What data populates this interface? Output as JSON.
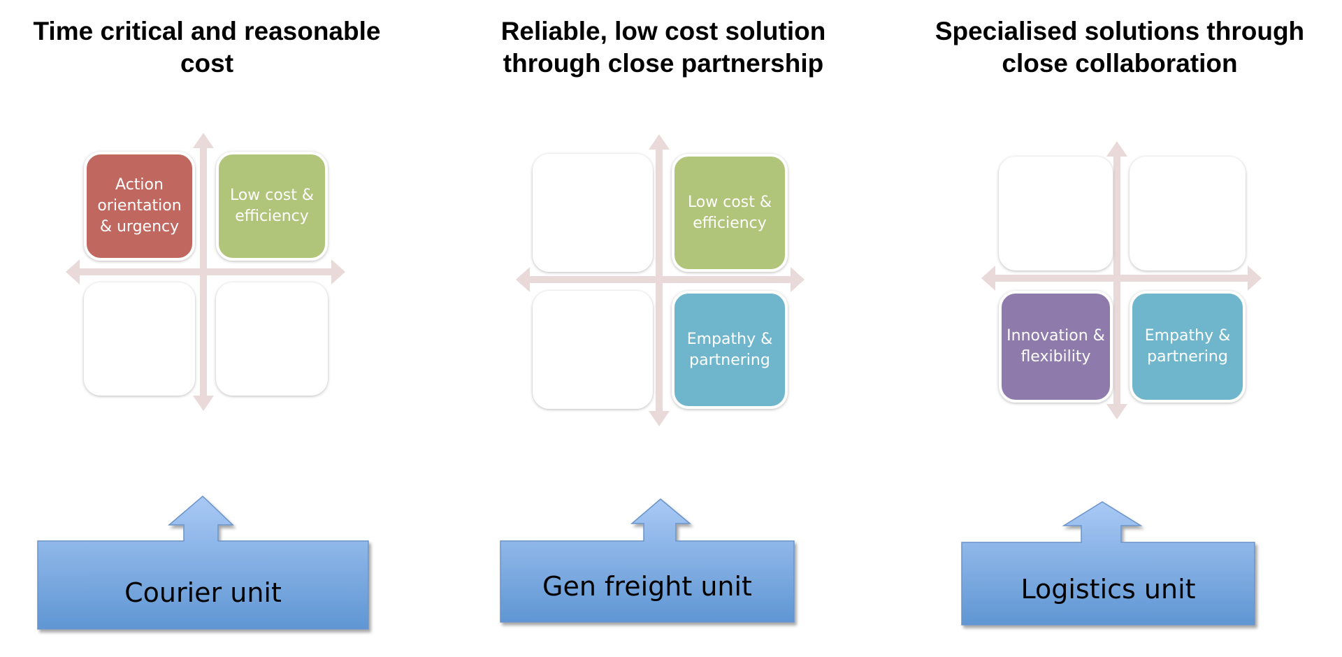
{
  "columns": [
    {
      "title_line1": "Time critical and reasonable",
      "title_line2": "cost",
      "quadrants": {
        "top_left": "Action orientation & urgency",
        "top_right": "Low cost & efficiency",
        "bottom_left": "",
        "bottom_right": ""
      },
      "unit": "Courier unit"
    },
    {
      "title_line1": "Reliable, low cost solution",
      "title_line2": "through close partnership",
      "quadrants": {
        "top_left": "",
        "top_right": "Low cost & efficiency",
        "bottom_left": "",
        "bottom_right": "Empathy & partnering"
      },
      "unit": "Gen freight unit"
    },
    {
      "title_line1": "Specialised solutions through",
      "title_line2": "close collaboration",
      "quadrants": {
        "top_left": "",
        "top_right": "",
        "bottom_left": "Innovation & flexibility",
        "bottom_right": "Empathy & partnering"
      },
      "unit": "Logistics unit"
    }
  ],
  "colors": {
    "action_orientation": "#c0675f",
    "low_cost": "#b0c47a",
    "empathy": "#6fb6cc",
    "innovation": "#8e7aab",
    "axis_arrows": "#ead9d9",
    "unit_top": "#a6c7f3",
    "unit_bottom": "#5f96d3"
  }
}
